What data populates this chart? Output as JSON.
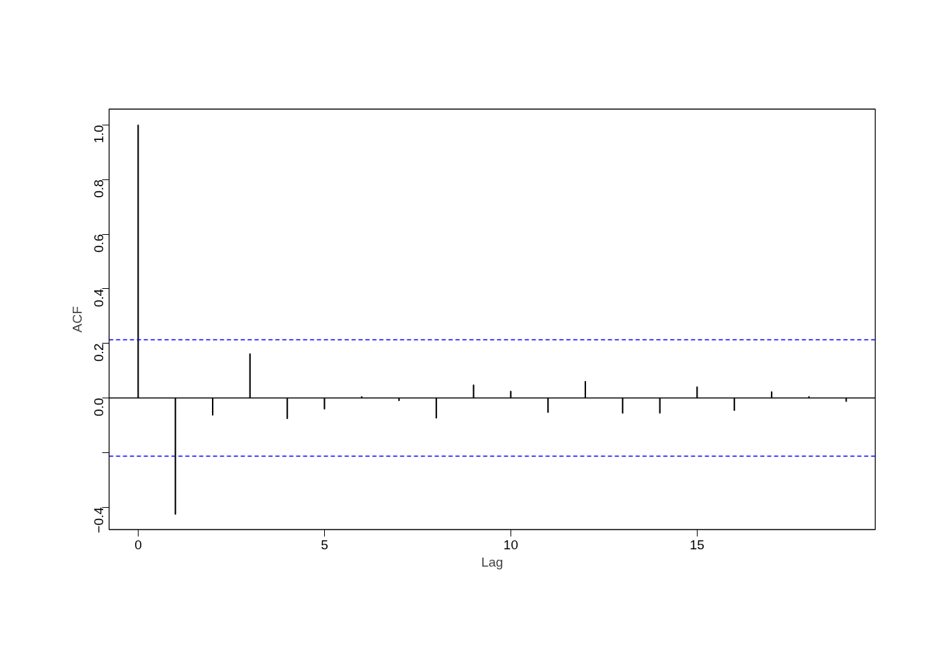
{
  "chart_data": {
    "type": "bar",
    "xlabel": "Lag",
    "ylabel": "ACF",
    "x": [
      0,
      1,
      2,
      3,
      4,
      5,
      6,
      7,
      8,
      9,
      10,
      11,
      12,
      13,
      14,
      15,
      16,
      17,
      18,
      19
    ],
    "series": [
      {
        "color": "#000000",
        "values": [
          1.0,
          -0.426,
          -0.063,
          0.162,
          -0.076,
          -0.041,
          0.005,
          -0.01,
          -0.074,
          0.048,
          0.025,
          -0.053,
          0.061,
          -0.056,
          -0.056,
          0.041,
          -0.046,
          0.023,
          0.005,
          -0.013
        ]
      }
    ],
    "xlim": [
      -0.78,
      19.78
    ],
    "ylim": [
      -0.482,
      1.058
    ],
    "xticks": [
      0,
      5,
      10,
      15
    ],
    "yticks": [
      -0.4,
      {
        "value": -0.2,
        "label": null
      },
      {
        "value": 0,
        "label": "0.0"
      },
      0.2,
      0.4,
      0.6,
      0.8,
      {
        "value": 1,
        "label": "1.0"
      }
    ],
    "ref_lines": [
      {
        "axis": "y",
        "value": 0.213,
        "color": "#0000ff",
        "line_style": "dashed"
      },
      {
        "axis": "y",
        "value": -0.213,
        "color": "#0000ff",
        "line_style": "dashed"
      },
      {
        "axis": "y",
        "value": 0,
        "color": "#000000",
        "line_style": "solid"
      }
    ],
    "grid": false
  }
}
